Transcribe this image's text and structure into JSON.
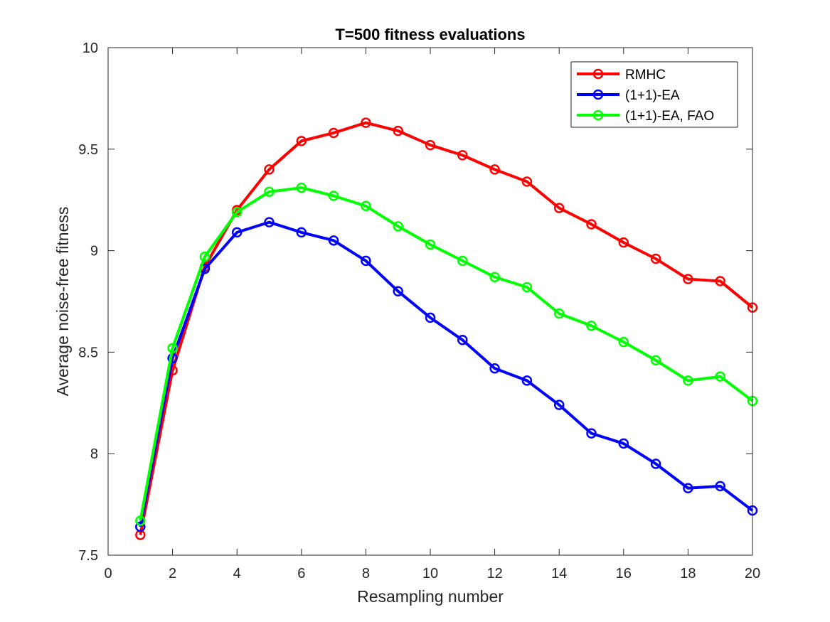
{
  "chart_data": {
    "type": "line",
    "title": "T=500 fitness evaluations",
    "xlabel": "Resampling number",
    "ylabel": "Average noise-free fitness",
    "xlim": [
      0,
      20
    ],
    "ylim": [
      7.5,
      10
    ],
    "xticks": [
      "0",
      "2",
      "4",
      "6",
      "8",
      "10",
      "12",
      "14",
      "16",
      "18",
      "20"
    ],
    "yticks": [
      "7.5",
      "8",
      "8.5",
      "9",
      "9.5",
      "10"
    ],
    "grid": false,
    "legend_position": "top-right",
    "x": [
      1,
      2,
      3,
      4,
      5,
      6,
      7,
      8,
      9,
      10,
      11,
      12,
      13,
      14,
      15,
      16,
      17,
      18,
      19,
      20
    ],
    "series": [
      {
        "name": "RMHC",
        "color": "#ff0000",
        "marker": "circle",
        "values": [
          7.6,
          8.41,
          8.92,
          9.2,
          9.4,
          9.54,
          9.58,
          9.63,
          9.59,
          9.52,
          9.47,
          9.4,
          9.34,
          9.21,
          9.13,
          9.04,
          8.96,
          8.86,
          8.85,
          8.72
        ]
      },
      {
        "name": "(1+1)-EA",
        "color": "#0000ff",
        "marker": "circle",
        "values": [
          7.64,
          8.47,
          8.91,
          9.09,
          9.14,
          9.09,
          9.05,
          8.95,
          8.8,
          8.67,
          8.56,
          8.42,
          8.36,
          8.24,
          8.1,
          8.05,
          7.95,
          7.83,
          7.84,
          7.72
        ]
      },
      {
        "name": "(1+1)-EA, FAO",
        "color": "#00ff00",
        "marker": "circle",
        "values": [
          7.67,
          8.52,
          8.97,
          9.19,
          9.29,
          9.31,
          9.27,
          9.22,
          9.12,
          9.03,
          8.95,
          8.87,
          8.82,
          8.69,
          8.63,
          8.55,
          8.46,
          8.36,
          8.38,
          8.26
        ]
      }
    ]
  }
}
